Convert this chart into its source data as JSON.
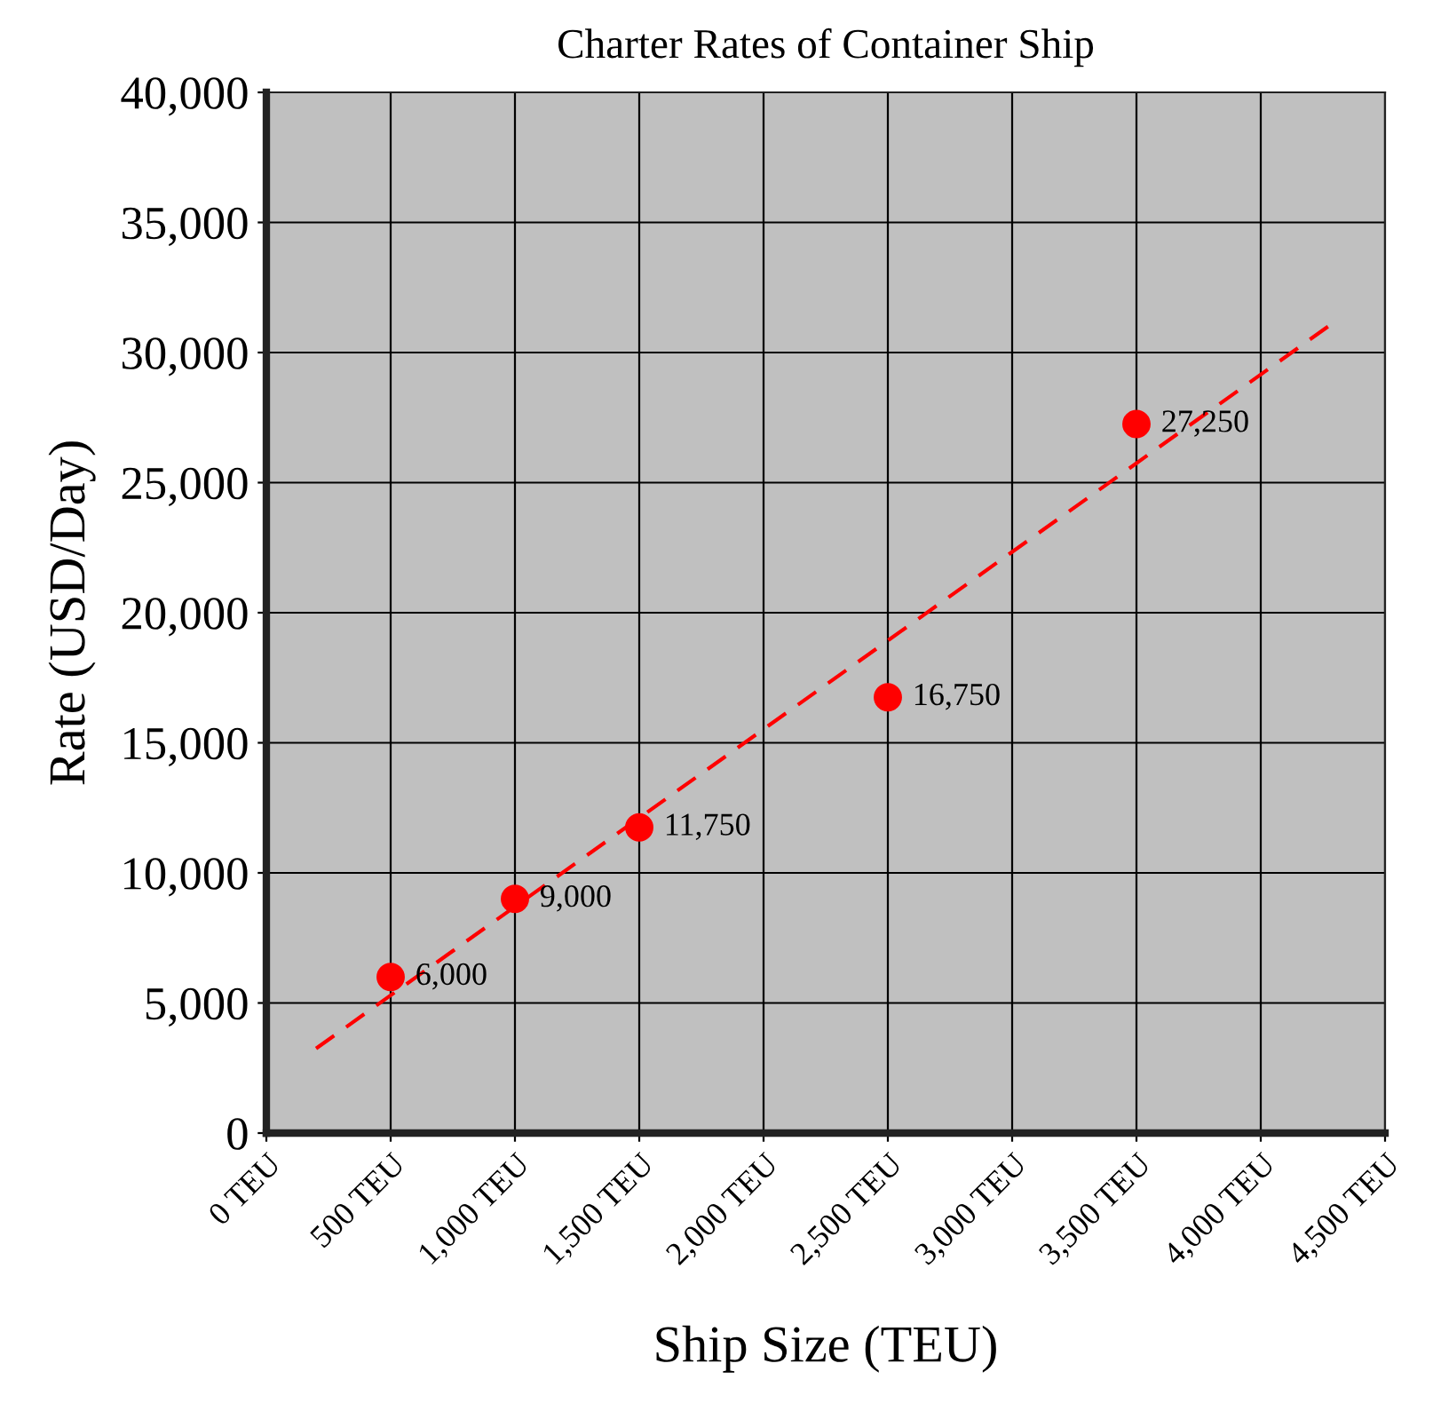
{
  "chart_data": {
    "type": "scatter",
    "title": "Charter Rates of Container Ship",
    "xlabel": "Ship Size (TEU)",
    "ylabel": "Rate (USD/Day)",
    "series": [
      {
        "color": "#ff0000",
        "marker": "circle",
        "x": [
          500,
          1000,
          1500,
          2500,
          3500
        ],
        "values": [
          6000,
          9000,
          11750,
          16750,
          27250
        ],
        "value_labels": [
          "6,000",
          "9,000",
          "11,750",
          "16,750",
          "27,250"
        ]
      },
      {
        "type": "line",
        "color": "#ff0000",
        "line_style": "dashed",
        "marker": "none",
        "x": [
          200,
          4300
        ],
        "values": [
          3250,
          31200
        ]
      }
    ],
    "xlim": [
      0,
      4500
    ],
    "ylim": [
      0,
      40000
    ],
    "xticks": [
      {
        "value": 0,
        "label": "0 TEU"
      },
      {
        "value": 500,
        "label": "500 TEU"
      },
      {
        "value": 1000,
        "label": "1,000 TEU"
      },
      {
        "value": 1500,
        "label": "1,500 TEU"
      },
      {
        "value": 2000,
        "label": "2,000 TEU"
      },
      {
        "value": 2500,
        "label": "2,500 TEU"
      },
      {
        "value": 3000,
        "label": "3,000 TEU"
      },
      {
        "value": 3500,
        "label": "3,500 TEU"
      },
      {
        "value": 4000,
        "label": "4,000 TEU"
      },
      {
        "value": 4500,
        "label": "4,500 TEU"
      }
    ],
    "yticks": [
      0,
      {
        "value": 5000,
        "label": "5,000"
      },
      {
        "value": 10000,
        "label": "10,000"
      },
      {
        "value": 15000,
        "label": "15,000"
      },
      {
        "value": 20000,
        "label": "20,000"
      },
      {
        "value": 25000,
        "label": "25,000"
      },
      {
        "value": 30000,
        "label": "30,000"
      },
      {
        "value": 35000,
        "label": "35,000"
      },
      {
        "value": 40000,
        "label": "40,000"
      }
    ],
    "grid": true,
    "legend": false
  }
}
